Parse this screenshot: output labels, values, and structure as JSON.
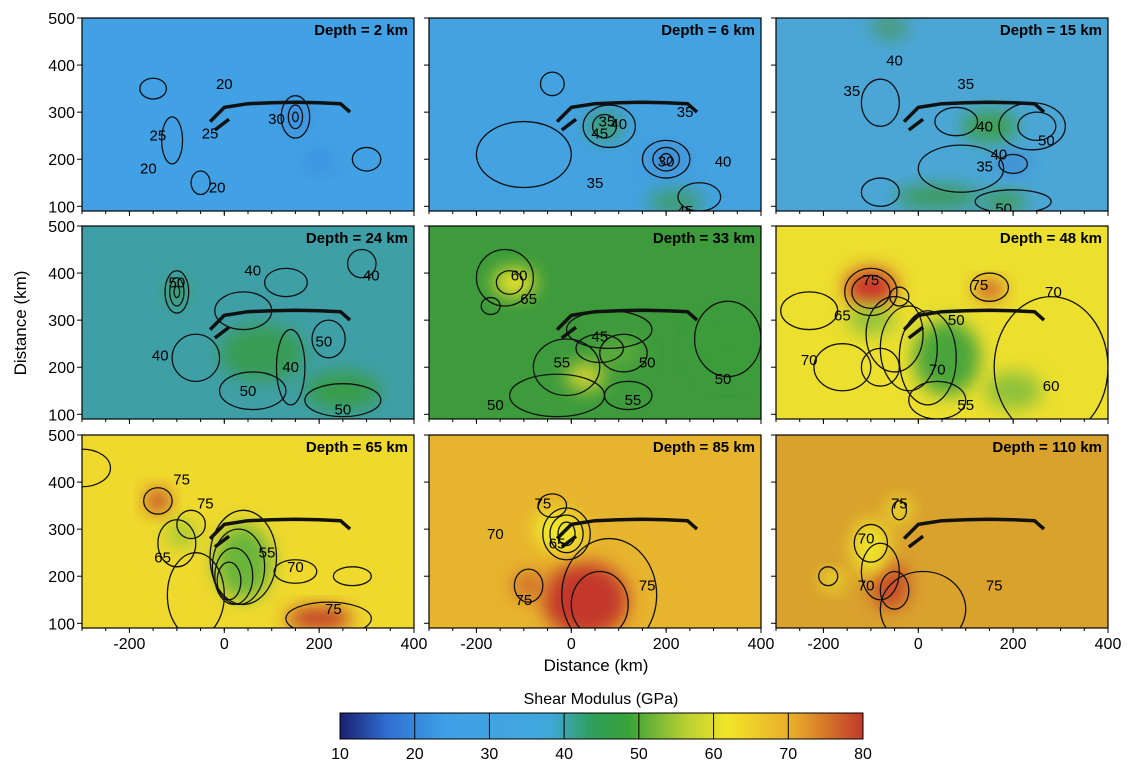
{
  "chart_data": {
    "type": "heatmap",
    "layout": "3x3 small multiples",
    "xlabel": "Distance (km)",
    "ylabel": "Distance (km)",
    "xlim": [
      -300,
      400
    ],
    "ylim": [
      90,
      500
    ],
    "xticks": [
      -200,
      0,
      200,
      400
    ],
    "yticks": [
      100,
      200,
      300,
      400,
      500
    ],
    "colorbar": {
      "title": "Shear Modulus (GPa)",
      "range": [
        10,
        80
      ],
      "ticks": [
        10,
        20,
        30,
        40,
        50,
        60,
        70,
        80
      ],
      "colormap": "blue-cyan-green-yellow-red",
      "colors": [
        "#1a1f6e",
        "#2f6fd1",
        "#3ea0e6",
        "#41a8dc",
        "#2f9e5c",
        "#37a238",
        "#b7cf32",
        "#f2e529",
        "#e8a92a",
        "#c0392b"
      ]
    },
    "trace_line": {
      "description": "thick black fault/profile trace drawn in every panel",
      "x": [
        -30,
        0,
        50,
        100,
        150,
        200,
        245,
        265
      ],
      "y": [
        280,
        310,
        318,
        320,
        321,
        320,
        318,
        300
      ]
    },
    "panels": [
      {
        "depth_label": "Depth = 2 km",
        "background": "#42a0e4",
        "contour_labels": [
          "20",
          "20",
          "20",
          "25",
          "25",
          "30"
        ]
      },
      {
        "depth_label": "Depth = 6 km",
        "background": "#44a2e1",
        "contour_labels": [
          "35",
          "40",
          "45",
          "35",
          "30",
          "40",
          "35",
          "45"
        ]
      },
      {
        "depth_label": "Depth = 15 km",
        "background": "#4ba6d6",
        "contour_labels": [
          "40",
          "35",
          "35",
          "40",
          "50",
          "40",
          "35",
          "50"
        ]
      },
      {
        "depth_label": "Depth = 24 km",
        "background": "#3f9fa6",
        "contour_labels": [
          "50",
          "40",
          "40",
          "40",
          "50",
          "40",
          "50",
          "50"
        ]
      },
      {
        "depth_label": "Depth = 33 km",
        "background": "#3d9b3c",
        "contour_labels": [
          "60",
          "65",
          "45",
          "55",
          "50",
          "50",
          "50",
          "55"
        ]
      },
      {
        "depth_label": "Depth = 48 km",
        "background": "#ecdf2e",
        "contour_labels": [
          "75",
          "75",
          "70",
          "65",
          "50",
          "70",
          "70",
          "60",
          "55"
        ]
      },
      {
        "depth_label": "Depth = 65 km",
        "background": "#efd92d",
        "contour_labels": [
          "75",
          "75",
          "65",
          "55",
          "70",
          "75"
        ]
      },
      {
        "depth_label": "Depth = 85 km",
        "background": "#e7b42e",
        "contour_labels": [
          "75",
          "70",
          "65",
          "75",
          "75"
        ]
      },
      {
        "depth_label": "Depth = 110 km",
        "background": "#d9a22d",
        "contour_labels": [
          "75",
          "70",
          "70",
          "75"
        ]
      }
    ],
    "bottom_panel_xticks": [
      [
        "-200",
        "0",
        "200",
        "400"
      ],
      [
        "-200",
        "0",
        "200",
        "400"
      ],
      [
        "-200",
        "0",
        "200",
        "400"
      ]
    ]
  }
}
